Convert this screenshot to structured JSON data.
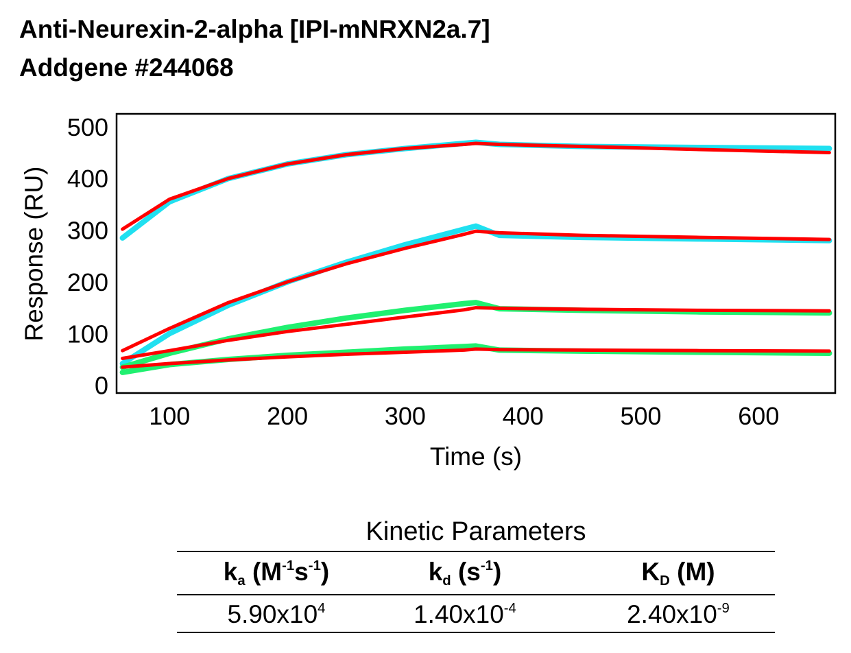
{
  "title": "Anti-Neurexin-2-alpha [IPI-mNRXN2a.7]",
  "subtitle": "Addgene #244068",
  "chart_data": {
    "type": "line",
    "xlabel": "Time (s)",
    "ylabel": "Response (RU)",
    "xlim": [
      55,
      665
    ],
    "ylim": [
      -15,
      525
    ],
    "xticks": [
      100,
      200,
      300,
      400,
      500,
      600
    ],
    "yticks": [
      0,
      100,
      200,
      300,
      400,
      500
    ],
    "grid": false,
    "colors": {
      "measured_high": "#20e0f0",
      "measured_low": "#20f070",
      "fit": "#ff0000"
    },
    "series": [
      {
        "kind": "measured",
        "color": "#20e0f0",
        "x": [
          60,
          100,
          150,
          200,
          250,
          300,
          350,
          360,
          380,
          450,
          550,
          660
        ],
        "y": [
          285,
          355,
          400,
          428,
          446,
          458,
          468,
          470,
          466,
          462,
          460,
          458
        ]
      },
      {
        "kind": "fit",
        "color": "#ff0000",
        "x": [
          60,
          100,
          150,
          200,
          250,
          300,
          350,
          360,
          380,
          450,
          550,
          660
        ],
        "y": [
          302,
          360,
          400,
          428,
          446,
          458,
          466,
          468,
          466,
          462,
          456,
          450
        ]
      },
      {
        "kind": "measured",
        "color": "#20e0f0",
        "x": [
          60,
          100,
          150,
          200,
          250,
          300,
          350,
          360,
          380,
          450,
          550,
          660
        ],
        "y": [
          42,
          100,
          155,
          200,
          238,
          272,
          302,
          308,
          290,
          286,
          283,
          280
        ]
      },
      {
        "kind": "fit",
        "color": "#ff0000",
        "x": [
          60,
          100,
          150,
          200,
          250,
          300,
          350,
          360,
          380,
          450,
          550,
          660
        ],
        "y": [
          67,
          110,
          160,
          200,
          235,
          265,
          292,
          298,
          295,
          290,
          286,
          282
        ]
      },
      {
        "kind": "measured",
        "color": "#20f070",
        "x": [
          60,
          100,
          150,
          200,
          250,
          300,
          350,
          360,
          380,
          450,
          550,
          660
        ],
        "y": [
          35,
          62,
          90,
          112,
          130,
          145,
          158,
          160,
          148,
          145,
          142,
          140
        ]
      },
      {
        "kind": "fit",
        "color": "#ff0000",
        "x": [
          60,
          100,
          150,
          200,
          250,
          300,
          350,
          360,
          380,
          450,
          550,
          660
        ],
        "y": [
          52,
          67,
          87,
          104,
          118,
          132,
          146,
          150,
          149,
          147,
          145,
          144
        ]
      },
      {
        "kind": "measured",
        "color": "#20f070",
        "x": [
          60,
          100,
          150,
          200,
          250,
          300,
          350,
          360,
          380,
          450,
          550,
          660
        ],
        "y": [
          25,
          40,
          50,
          58,
          64,
          70,
          75,
          76,
          68,
          66,
          64,
          62
        ]
      },
      {
        "kind": "fit",
        "color": "#ff0000",
        "x": [
          60,
          100,
          150,
          200,
          250,
          300,
          350,
          360,
          380,
          450,
          550,
          660
        ],
        "y": [
          35,
          42,
          49,
          55,
          60,
          64,
          68,
          70,
          69,
          68,
          67,
          66
        ]
      }
    ]
  },
  "kinetics": {
    "title": "Kinetic Parameters",
    "headers": [
      {
        "base": "k",
        "sub": "a",
        "pre": " (M",
        "sup1": "-1",
        "mid": "s",
        "sup2": "-1",
        "post": ")"
      },
      {
        "base": "k",
        "sub": "d",
        "pre": " (s",
        "sup1": "-1",
        "mid": "",
        "sup2": "",
        "post": ")"
      },
      {
        "base": "K",
        "sub": "D",
        "pre": " (M)",
        "sup1": "",
        "mid": "",
        "sup2": "",
        "post": ""
      }
    ],
    "values": [
      {
        "mantissa": "5.90x10",
        "exp": "4"
      },
      {
        "mantissa": "1.40x10",
        "exp": "-4"
      },
      {
        "mantissa": "2.40x10",
        "exp": "-9"
      }
    ]
  }
}
